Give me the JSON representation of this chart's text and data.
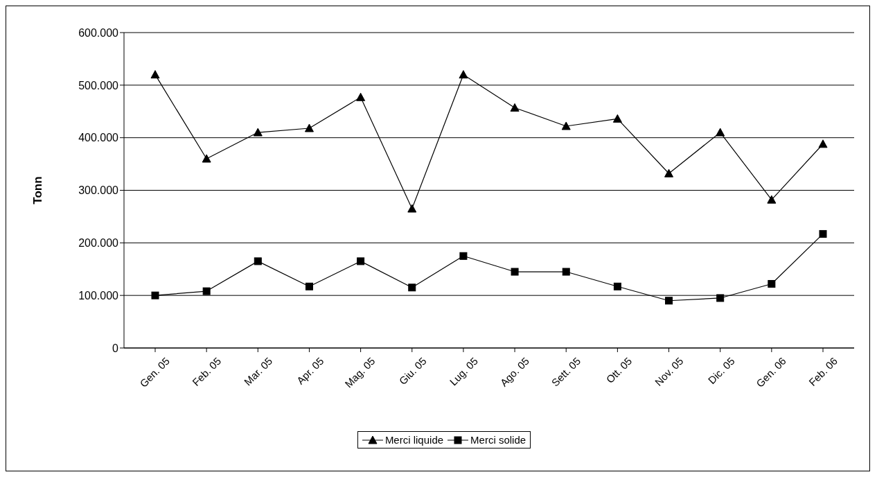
{
  "chart_data": {
    "type": "line",
    "ylabel": "Tonn",
    "categories": [
      "Gen. 05",
      "Feb. 05",
      "Mar. 05",
      "Apr. 05",
      "Mag. 05",
      "Giu. 05",
      "Lug. 05",
      "Ago. 05",
      "Sett. 05",
      "Ott. 05",
      "Nov. 05",
      "Dic. 05",
      "Gen. 06",
      "Feb. 06"
    ],
    "series": [
      {
        "name": "Merci liquide",
        "color": "#000000",
        "marker": "triangle",
        "values": [
          520000,
          360000,
          410000,
          418000,
          477000,
          265000,
          520000,
          457000,
          422000,
          436000,
          332000,
          410000,
          282000,
          388000
        ]
      },
      {
        "name": "Merci solide",
        "color": "#000000",
        "marker": "square",
        "values": [
          100000,
          108000,
          165000,
          117000,
          165000,
          115000,
          175000,
          145000,
          145000,
          117000,
          90000,
          95000,
          122000,
          217000
        ]
      }
    ],
    "ylim": [
      0,
      600000
    ],
    "yticks": [
      0,
      {
        "value": 100000,
        "label": "100.000"
      },
      {
        "value": 200000,
        "label": "200.000"
      },
      {
        "value": 300000,
        "label": "300.000"
      },
      {
        "value": 400000,
        "label": "400.000"
      },
      {
        "value": 500000,
        "label": "500.000"
      },
      {
        "value": 600000,
        "label": "600.000"
      }
    ],
    "grid": "y",
    "legend": "bottom",
    "line_style": "solid"
  }
}
